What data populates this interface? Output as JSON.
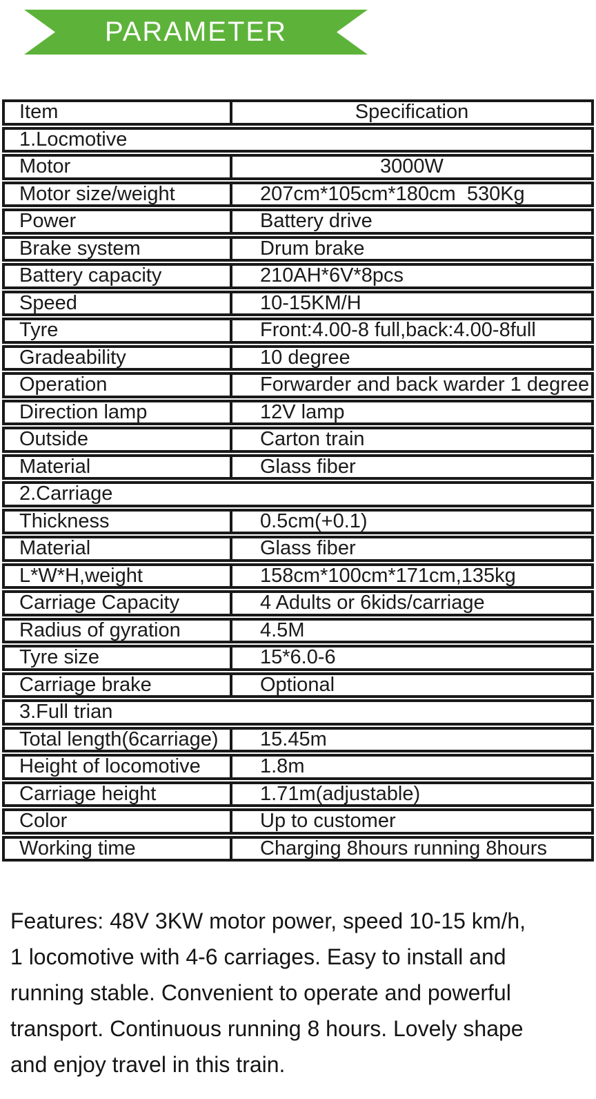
{
  "banner": {
    "title": "PARAMETER",
    "ribbon_color": "#5db33a",
    "text_color": "#ffffff"
  },
  "table": {
    "border_color": "#191919",
    "header": {
      "item": "Item",
      "spec": "Specification"
    },
    "rows": [
      {
        "type": "section",
        "label": "1.Locmotive"
      },
      {
        "type": "row",
        "item": "Motor",
        "spec": "3000W",
        "center_spec": true
      },
      {
        "type": "row",
        "item": "Motor size/weight",
        "spec": "207cm*105cm*180cm  530Kg"
      },
      {
        "type": "row",
        "item": "Power",
        "spec": "Battery drive"
      },
      {
        "type": "row",
        "item": "Brake system",
        "spec": "Drum brake"
      },
      {
        "type": "row",
        "item": "Battery capacity",
        "spec": "210AH*6V*8pcs"
      },
      {
        "type": "row",
        "item": "Speed",
        "spec": "10-15KM/H"
      },
      {
        "type": "row",
        "item": "Tyre",
        "spec": "Front:4.00-8 full,back:4.00-8full"
      },
      {
        "type": "row",
        "item": "Gradeability",
        "spec": "10 degree"
      },
      {
        "type": "row",
        "item": "Operation",
        "spec": "Forwarder and back warder 1 degree"
      },
      {
        "type": "row",
        "item": "Direction lamp",
        "spec": "12V lamp"
      },
      {
        "type": "row",
        "item": "Outside",
        "spec": "Carton train"
      },
      {
        "type": "row",
        "item": "Material",
        "spec": "Glass fiber"
      },
      {
        "type": "section",
        "label": "2.Carriage"
      },
      {
        "type": "row",
        "item": "Thickness",
        "spec": "0.5cm(+0.1)"
      },
      {
        "type": "row",
        "item": "Material",
        "spec": "Glass fiber"
      },
      {
        "type": "row",
        "item": "L*W*H,weight",
        "spec": "158cm*100cm*171cm,135kg"
      },
      {
        "type": "row",
        "item": "Carriage Capacity",
        "spec": "4 Adults or 6kids/carriage"
      },
      {
        "type": "row",
        "item": "Radius of gyration",
        "spec": "4.5M"
      },
      {
        "type": "row",
        "item": "Tyre size",
        "spec": "15*6.0-6"
      },
      {
        "type": "row",
        "item": "Carriage brake",
        "spec": "Optional"
      },
      {
        "type": "section",
        "label": "3.Full trian"
      },
      {
        "type": "row",
        "item": "Total length(6carriage)",
        "spec": "15.45m"
      },
      {
        "type": "row",
        "item": "Height of locomotive",
        "spec": "1.8m"
      },
      {
        "type": "row",
        "item": "Carriage height",
        "spec": "1.71m(adjustable)"
      },
      {
        "type": "row",
        "item": "Color",
        "spec": "Up to customer"
      },
      {
        "type": "row",
        "item": "Working time",
        "spec": "Charging 8hours running 8hours"
      }
    ]
  },
  "features": {
    "lines": [
      "Features: 48V 3KW motor power, speed 10-15 km/h,",
      "1 locomotive with 4-6 carriages. Easy  to install and",
      "running stable. Convenient to operate and powerful",
      "transport. Continuous running 8 hours. Lovely shape",
      "and enjoy travel in this train."
    ]
  }
}
